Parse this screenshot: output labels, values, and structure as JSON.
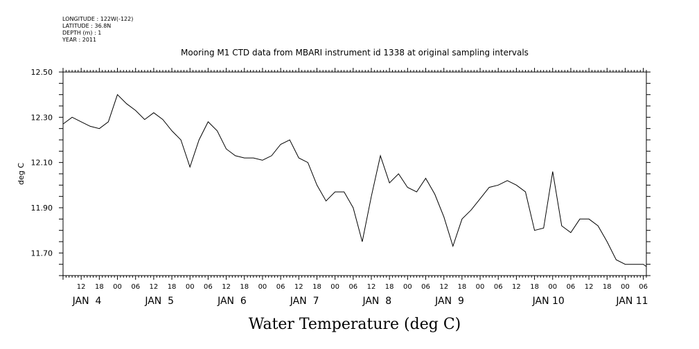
{
  "meta": {
    "longitude": "LONGITUDE : 122W(-122)",
    "latitude": "LATITUDE : 36.8N",
    "depth": "DEPTH (m) : 1",
    "year": "YEAR : 2011"
  },
  "chart_data": {
    "type": "line",
    "title": "Mooring M1 CTD data from MBARI instrument id 1338 at original sampling intervals",
    "xlabel": "Water Temperature (deg C)",
    "ylabel": "deg C",
    "ylim": [
      11.6,
      12.5
    ],
    "xlim": [
      "2011-01-03T06:00",
      "2011-01-11T07:00"
    ],
    "y_ticks": [
      "12.50",
      "12.30",
      "12.10",
      "11.90",
      "11.70"
    ],
    "x_hour_ticks": [
      "12",
      "18",
      "00",
      "06",
      "12",
      "18",
      "00",
      "06",
      "12",
      "18",
      "00",
      "06",
      "12",
      "18",
      "00",
      "06",
      "12",
      "18",
      "00",
      "06",
      "12",
      "18",
      "00",
      "06",
      "12",
      "18",
      "00",
      "06",
      "12",
      "18",
      "00",
      "06"
    ],
    "x_day_labels": [
      "JAN  4",
      "JAN  5",
      "JAN  6",
      "JAN  7",
      "JAN  8",
      "JAN  9",
      "JAN 10",
      "JAN 11"
    ],
    "series": [
      {
        "x": [
          "2011-01-03T06:00",
          "2011-01-03T09:00",
          "2011-01-03T12:00",
          "2011-01-03T15:00",
          "2011-01-03T18:00",
          "2011-01-03T21:00",
          "2011-01-04T00:00",
          "2011-01-04T03:00",
          "2011-01-04T06:00",
          "2011-01-04T09:00",
          "2011-01-04T12:00",
          "2011-01-04T15:00",
          "2011-01-04T18:00",
          "2011-01-04T21:00",
          "2011-01-05T00:00",
          "2011-01-05T03:00",
          "2011-01-05T06:00",
          "2011-01-05T09:00",
          "2011-01-05T12:00",
          "2011-01-05T15:00",
          "2011-01-05T18:00",
          "2011-01-05T21:00",
          "2011-01-06T00:00",
          "2011-01-06T03:00",
          "2011-01-06T06:00",
          "2011-01-06T09:00",
          "2011-01-06T12:00",
          "2011-01-06T15:00",
          "2011-01-06T18:00",
          "2011-01-06T21:00",
          "2011-01-07T00:00",
          "2011-01-07T03:00",
          "2011-01-07T06:00",
          "2011-01-07T09:00",
          "2011-01-07T12:00",
          "2011-01-07T15:00",
          "2011-01-07T18:00",
          "2011-01-07T21:00",
          "2011-01-08T00:00",
          "2011-01-08T03:00",
          "2011-01-08T06:00",
          "2011-01-08T09:00",
          "2011-01-08T12:00",
          "2011-01-08T15:00",
          "2011-01-08T18:00",
          "2011-01-08T21:00",
          "2011-01-09T00:00",
          "2011-01-09T03:00",
          "2011-01-09T06:00",
          "2011-01-09T09:00",
          "2011-01-09T12:00",
          "2011-01-09T15:00",
          "2011-01-09T18:00",
          "2011-01-09T21:00",
          "2011-01-10T00:00",
          "2011-01-10T03:00",
          "2011-01-10T06:00",
          "2011-01-10T09:00",
          "2011-01-10T12:00",
          "2011-01-10T15:00",
          "2011-01-10T18:00",
          "2011-01-10T21:00",
          "2011-01-11T00:00",
          "2011-01-11T03:00",
          "2011-01-11T06:00",
          "2011-01-11T07:00"
        ],
        "y": [
          12.27,
          12.3,
          12.28,
          12.26,
          12.25,
          12.28,
          12.4,
          12.36,
          12.33,
          12.29,
          12.32,
          12.29,
          12.24,
          12.2,
          12.08,
          12.2,
          12.28,
          12.24,
          12.16,
          12.13,
          12.12,
          12.12,
          12.11,
          12.13,
          12.18,
          12.2,
          12.12,
          12.1,
          12.0,
          11.93,
          11.97,
          11.97,
          11.9,
          11.75,
          11.95,
          12.13,
          12.01,
          12.05,
          11.99,
          11.97,
          12.03,
          11.96,
          11.86,
          11.73,
          11.85,
          11.89,
          11.94,
          11.99,
          12.0,
          12.02,
          12.0,
          11.97,
          11.8,
          11.81,
          12.06,
          11.82,
          11.79,
          11.85,
          11.85,
          11.82,
          11.75,
          11.67,
          11.65,
          11.65,
          11.65,
          11.64
        ]
      }
    ]
  }
}
